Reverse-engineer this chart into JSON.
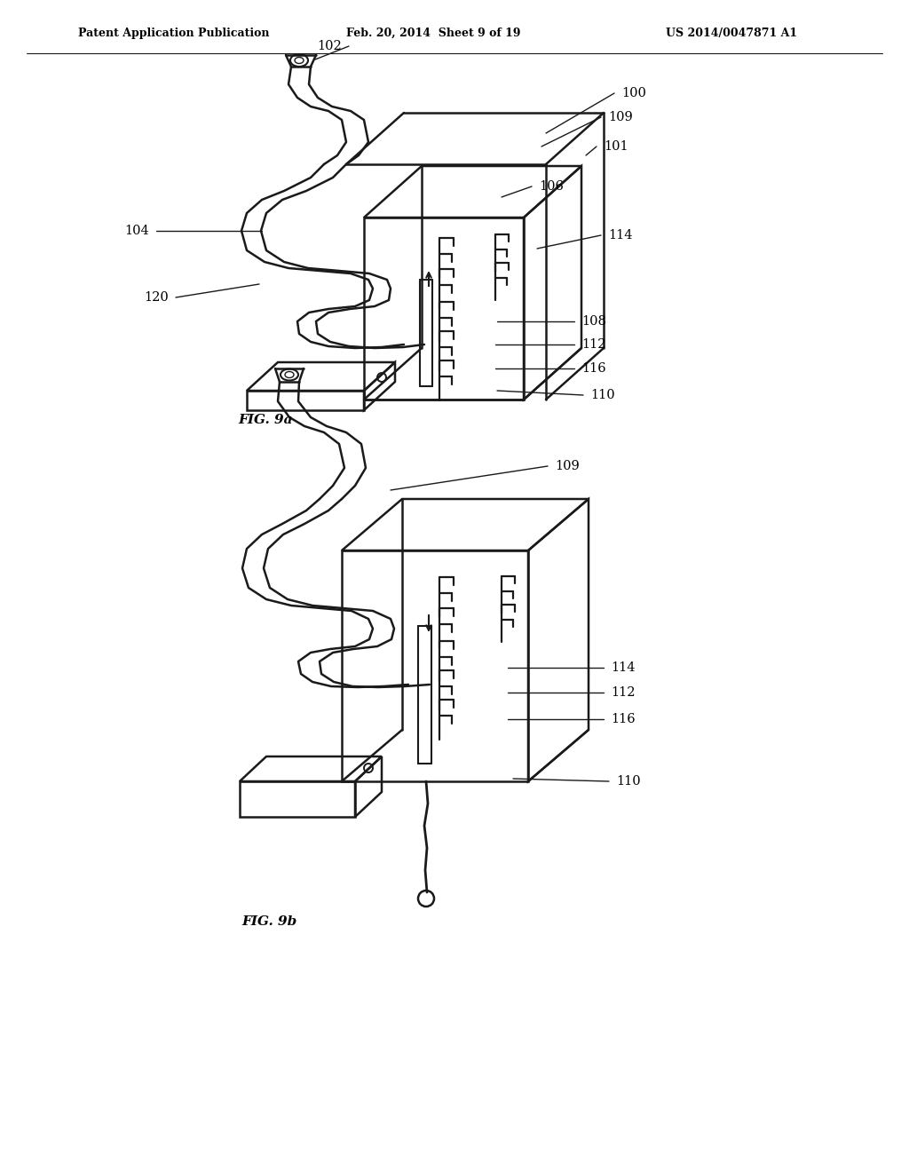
{
  "background_color": "#ffffff",
  "header_left": "Patent Application Publication",
  "header_mid": "Feb. 20, 2014  Sheet 9 of 19",
  "header_right": "US 2014/0047871 A1",
  "fig_label_a": "FIG. 9a",
  "fig_label_b": "FIG. 9b",
  "line_color": "#1a1a1a",
  "text_color": "#000000"
}
